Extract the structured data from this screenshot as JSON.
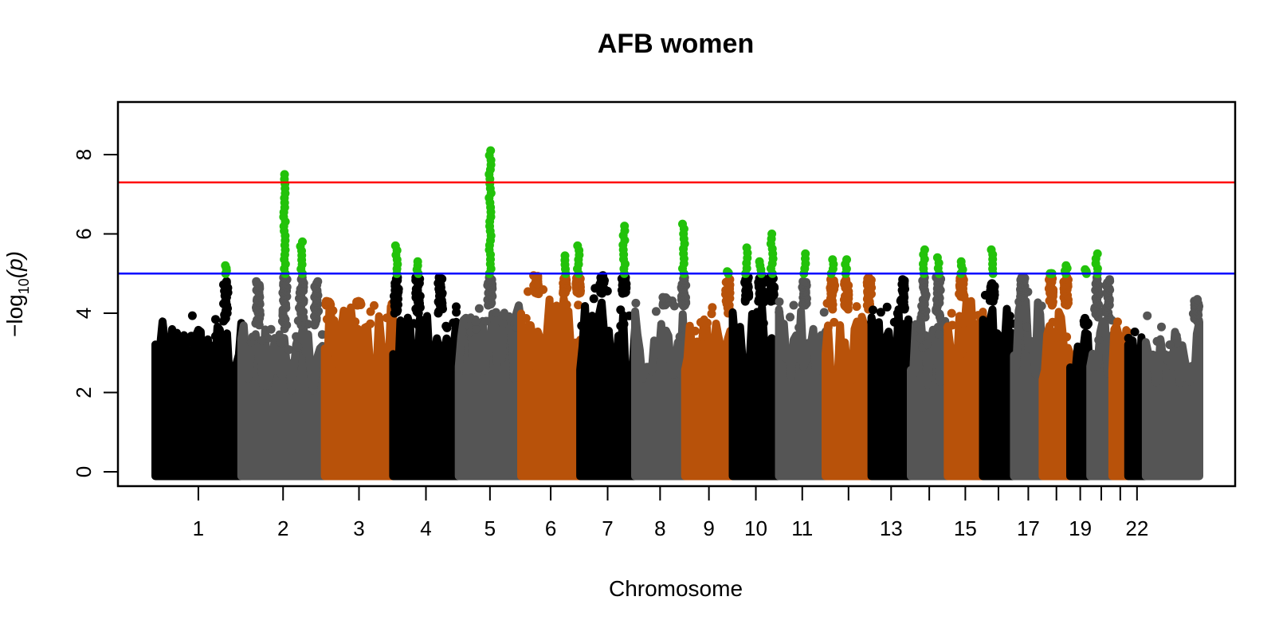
{
  "chart_data": {
    "type": "scatter",
    "subtype": "manhattan",
    "title": "AFB women",
    "xlabel": "Chromosome",
    "ylabel": "−log10(p)",
    "ylabel_parts": {
      "prefix": "−log",
      "sub": "10",
      "suffix": "(p)"
    },
    "ylim": [
      0,
      9.2
    ],
    "yticks": [
      0,
      2,
      4,
      6,
      8
    ],
    "x_tick_labels": [
      "1",
      "2",
      "3",
      "4",
      "5",
      "6",
      "7",
      "8",
      "9",
      "10",
      "11",
      "",
      "13",
      "",
      "15",
      "",
      "17",
      "",
      "19",
      "",
      "",
      "22"
    ],
    "chromosomes": [
      {
        "chr": 1,
        "len": 249,
        "color": "#000000",
        "base_max": 3.8,
        "peaks": [
          {
            "pos": 0.82,
            "max": 4.8,
            "sig_max": 5.2
          }
        ]
      },
      {
        "chr": 2,
        "len": 242,
        "color": "#555555",
        "base_max": 3.7,
        "peaks": [
          {
            "pos": 0.52,
            "max": 4.9,
            "sig_max": 7.5
          },
          {
            "pos": 0.72,
            "max": 4.9,
            "sig_max": 5.8
          },
          {
            "pos": 0.2,
            "max": 4.8
          },
          {
            "pos": 0.9,
            "max": 4.8
          }
        ]
      },
      {
        "chr": 3,
        "len": 198,
        "color": "#b8520a",
        "base_max": 4.2,
        "peaks": [
          {
            "pos": 0.05,
            "max": 4.3
          },
          {
            "pos": 0.5,
            "max": 4.3
          }
        ]
      },
      {
        "chr": 4,
        "len": 190,
        "color": "#000000",
        "base_max": 4.0,
        "peaks": [
          {
            "pos": 0.05,
            "max": 4.9,
            "sig_max": 5.7
          },
          {
            "pos": 0.38,
            "max": 4.9,
            "sig_max": 5.3
          },
          {
            "pos": 0.72,
            "max": 4.9
          }
        ]
      },
      {
        "chr": 5,
        "len": 181,
        "color": "#555555",
        "base_max": 4.2,
        "peaks": [
          {
            "pos": 0.5,
            "max": 4.9,
            "sig_max": 8.1
          }
        ]
      },
      {
        "chr": 6,
        "len": 171,
        "color": "#b8520a",
        "base_max": 4.5,
        "peaks": [
          {
            "pos": 0.25,
            "max": 4.95
          },
          {
            "pos": 0.75,
            "max": 4.9,
            "sig_max": 5.45
          },
          {
            "pos": 0.97,
            "max": 4.9,
            "sig_max": 5.7
          }
        ]
      },
      {
        "chr": 7,
        "len": 159,
        "color": "#000000",
        "base_max": 4.5,
        "peaks": [
          {
            "pos": 0.4,
            "max": 4.95
          },
          {
            "pos": 0.8,
            "max": 4.9,
            "sig_max": 6.2
          }
        ]
      },
      {
        "chr": 8,
        "len": 145,
        "color": "#555555",
        "base_max": 4.2,
        "peaks": [
          {
            "pos": 0.6,
            "max": 4.4
          },
          {
            "pos": 0.97,
            "max": 4.9,
            "sig_max": 6.25
          }
        ]
      },
      {
        "chr": 9,
        "len": 138,
        "color": "#b8520a",
        "base_max": 4.0,
        "peaks": [
          {
            "pos": 0.9,
            "max": 4.85,
            "sig_max": 5.05
          }
        ]
      },
      {
        "chr": 10,
        "len": 134,
        "color": "#000000",
        "base_max": 4.3,
        "peaks": [
          {
            "pos": 0.3,
            "max": 4.9,
            "sig_max": 5.65
          },
          {
            "pos": 0.6,
            "max": 4.9,
            "sig_max": 5.3
          },
          {
            "pos": 0.85,
            "max": 4.9,
            "sig_max": 6.0
          }
        ]
      },
      {
        "chr": 11,
        "len": 135,
        "color": "#555555",
        "base_max": 4.2,
        "peaks": [
          {
            "pos": 0.55,
            "max": 4.8,
            "sig_max": 5.5
          }
        ]
      },
      {
        "chr": 12,
        "len": 133,
        "color": "#b8520a",
        "base_max": 4.1,
        "peaks": [
          {
            "pos": 0.15,
            "max": 4.85,
            "sig_max": 5.35
          },
          {
            "pos": 0.45,
            "max": 4.85,
            "sig_max": 5.35
          },
          {
            "pos": 0.95,
            "max": 4.9
          }
        ]
      },
      {
        "chr": 13,
        "len": 114,
        "color": "#000000",
        "base_max": 4.1,
        "peaks": [
          {
            "pos": 0.8,
            "max": 4.85
          }
        ]
      },
      {
        "chr": 14,
        "len": 107,
        "color": "#555555",
        "base_max": 3.9,
        "peaks": [
          {
            "pos": 0.35,
            "max": 4.9,
            "sig_max": 5.6
          },
          {
            "pos": 0.75,
            "max": 4.9,
            "sig_max": 5.4
          }
        ]
      },
      {
        "chr": 15,
        "len": 102,
        "color": "#b8520a",
        "base_max": 4.4,
        "peaks": [
          {
            "pos": 0.4,
            "max": 4.9,
            "sig_max": 5.3
          }
        ]
      },
      {
        "chr": 16,
        "len": 90,
        "color": "#000000",
        "base_max": 4.3,
        "peaks": [
          {
            "pos": 0.3,
            "max": 4.75,
            "sig_max": 5.6
          }
        ]
      },
      {
        "chr": 17,
        "len": 83,
        "color": "#555555",
        "base_max": 4.4,
        "peaks": [
          {
            "pos": 0.3,
            "max": 4.9
          }
        ]
      },
      {
        "chr": 18,
        "len": 80,
        "color": "#b8520a",
        "base_max": 4.2,
        "peaks": [
          {
            "pos": 0.3,
            "max": 4.9,
            "sig_max": 5.0
          },
          {
            "pos": 0.85,
            "max": 4.9,
            "sig_max": 5.2
          }
        ]
      },
      {
        "chr": 19,
        "len": 58,
        "color": "#000000",
        "base_max": 3.7,
        "peaks": [
          {
            "pos": 0.8,
            "max": 3.8,
            "sig_max": 5.1
          }
        ]
      },
      {
        "chr": 20,
        "len": 64,
        "color": "#555555",
        "base_max": 3.9,
        "peaks": [
          {
            "pos": 0.3,
            "max": 4.9,
            "sig_max": 5.5
          },
          {
            "pos": 0.8,
            "max": 4.85
          }
        ]
      },
      {
        "chr": 21,
        "len": 46,
        "color": "#b8520a",
        "base_max": 3.8,
        "peaks": []
      },
      {
        "chr": 22,
        "len": 51,
        "color": "#000000",
        "base_max": 3.6,
        "peaks": []
      },
      {
        "chr": 23,
        "len": 155,
        "color": "#555555",
        "base_max": 3.8,
        "peaks": [
          {
            "pos": 0.95,
            "max": 4.35
          }
        ]
      }
    ],
    "significant_color": "#22c20a",
    "suggestive_threshold": 5.0,
    "suggestive_color": "#0000ff",
    "genome_wide_threshold": 7.3,
    "genome_wide_color": "#ff0000",
    "grid": false
  }
}
